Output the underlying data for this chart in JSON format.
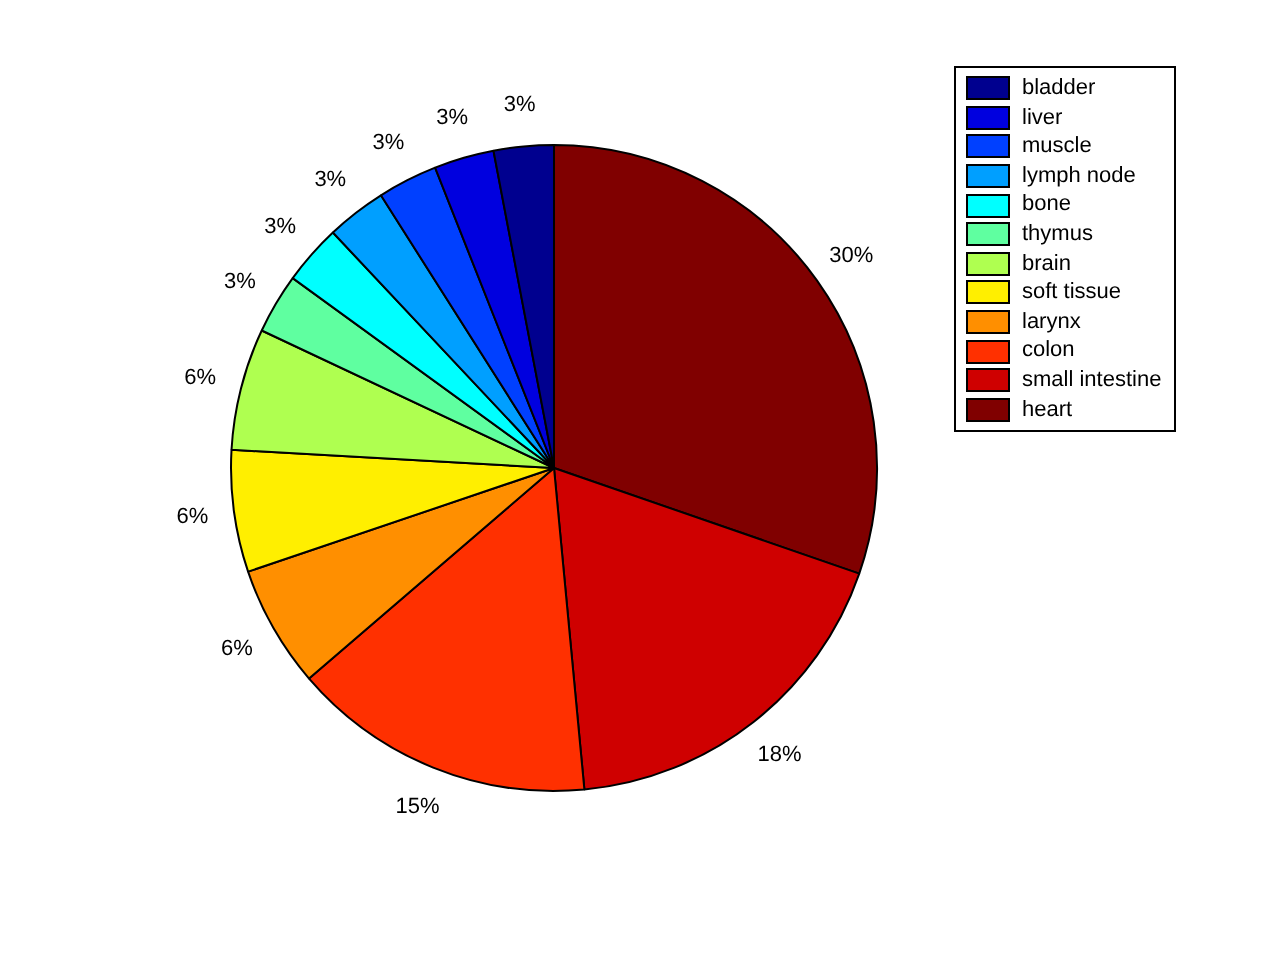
{
  "chart_data": {
    "type": "pie",
    "categories": [
      "bladder",
      "liver",
      "muscle",
      "lymph node",
      "bone",
      "thymus",
      "brain",
      "soft tissue",
      "larynx",
      "colon",
      "small intestine",
      "heart"
    ],
    "values": [
      3,
      3,
      3,
      3,
      3,
      3,
      6.1,
      6.1,
      6.1,
      15.2,
      18.2,
      30.3
    ],
    "value_labels": [
      "3%",
      "3%",
      "3%",
      "3%",
      "3%",
      "3%",
      "6%",
      "6%",
      "6%",
      "15%",
      "18%",
      "30%"
    ],
    "colors": [
      "#00008f",
      "#0000df",
      "#0040ff",
      "#009fff",
      "#00ffff",
      "#5fffa0",
      "#afff50",
      "#ffef00",
      "#ff8f00",
      "#ff3000",
      "#cf0000",
      "#800000"
    ],
    "legend": "top right"
  }
}
